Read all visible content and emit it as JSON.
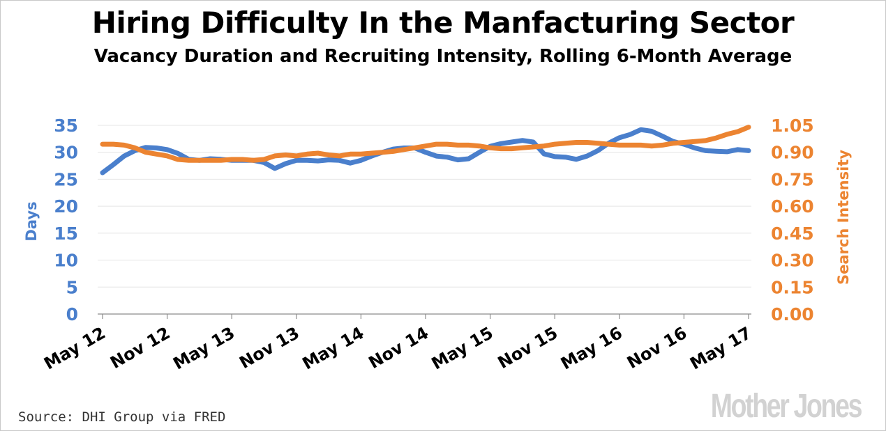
{
  "chart_data": {
    "type": "line",
    "title": "Hiring Difficulty In the Manfacturing Sector",
    "subtitle": "Vacancy Duration and Recruiting Intensity, Rolling 6-Month Average",
    "ylabel_left": "Days",
    "ylabel_right": "Search Intensity",
    "ylim_left": [
      0,
      35
    ],
    "ylim_right": [
      0,
      1.05
    ],
    "yticks_left": [
      "0",
      "5",
      "10",
      "15",
      "20",
      "25",
      "30",
      "35"
    ],
    "yticks_right": [
      "0.00",
      "0.15",
      "0.30",
      "0.45",
      "0.60",
      "0.75",
      "0.90",
      "1.05"
    ],
    "x_tick_labels": [
      "May 12",
      "Nov 12",
      "May 13",
      "Nov 13",
      "May 14",
      "Nov 14",
      "May 15",
      "Nov 15",
      "May 16",
      "Nov 16",
      "May 17"
    ],
    "months": 61,
    "series": [
      {
        "name": "Days",
        "axis": "left",
        "color": "#4a7fcc",
        "values": [
          26.2,
          27.7,
          29.3,
          30.3,
          30.9,
          30.8,
          30.5,
          29.8,
          28.7,
          28.5,
          28.8,
          28.7,
          28.5,
          28.5,
          28.5,
          28.1,
          27.0,
          27.9,
          28.5,
          28.5,
          28.4,
          28.6,
          28.5,
          28.0,
          28.5,
          29.3,
          30.0,
          30.6,
          30.8,
          30.8,
          30.0,
          29.3,
          29.1,
          28.6,
          28.8,
          30.0,
          31.1,
          31.6,
          31.9,
          32.2,
          31.9,
          29.7,
          29.2,
          29.1,
          28.7,
          29.3,
          30.3,
          31.7,
          32.7,
          33.3,
          34.2,
          33.9,
          33.0,
          32.0,
          31.5,
          30.8,
          30.3,
          30.2,
          30.1,
          30.5,
          30.3
        ]
      },
      {
        "name": "Search Intensity",
        "axis": "right",
        "color": "#ec8431",
        "values": [
          0.945,
          0.945,
          0.94,
          0.925,
          0.9,
          0.89,
          0.88,
          0.86,
          0.855,
          0.855,
          0.855,
          0.855,
          0.86,
          0.86,
          0.855,
          0.86,
          0.88,
          0.885,
          0.88,
          0.89,
          0.895,
          0.885,
          0.88,
          0.89,
          0.89,
          0.895,
          0.9,
          0.905,
          0.915,
          0.925,
          0.935,
          0.945,
          0.945,
          0.94,
          0.94,
          0.935,
          0.925,
          0.92,
          0.92,
          0.925,
          0.93,
          0.935,
          0.945,
          0.95,
          0.955,
          0.955,
          0.95,
          0.945,
          0.94,
          0.94,
          0.94,
          0.935,
          0.94,
          0.95,
          0.955,
          0.96,
          0.965,
          0.98,
          1.0,
          1.015,
          1.04
        ]
      }
    ],
    "grid": true
  },
  "source": "Source: DHI Group via FRED",
  "logo": "Mother Jones"
}
